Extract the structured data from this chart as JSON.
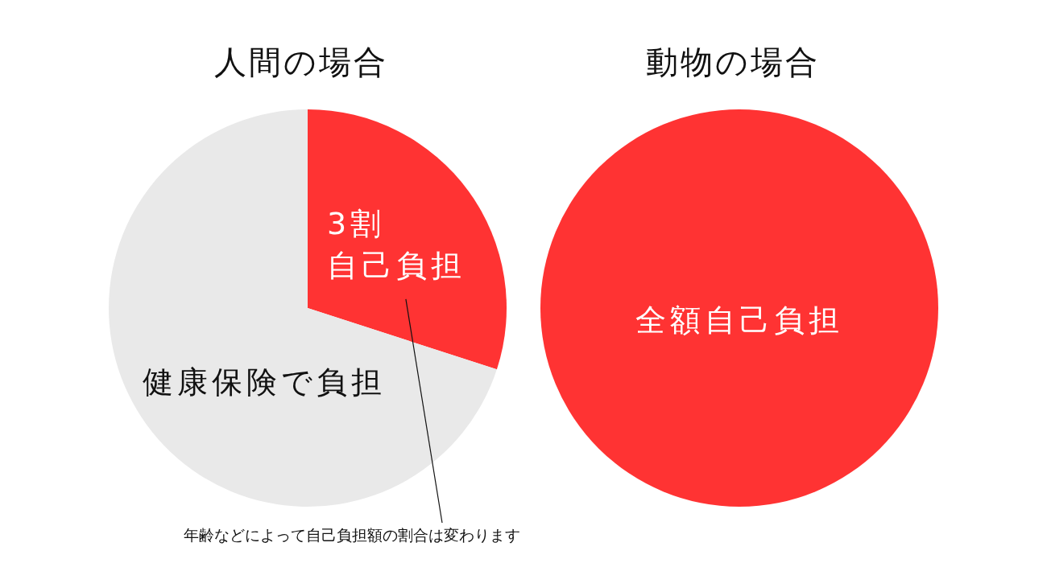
{
  "chart_data": [
    {
      "type": "pie",
      "title": "人間の場合",
      "categories": [
        "3割自己負担",
        "健康保険で負担"
      ],
      "values": [
        30,
        70
      ],
      "colors": [
        "#ff3333",
        "#e9e9e9"
      ],
      "annotations": [
        "年齢などによって自己負担額の割合は変わります"
      ]
    },
    {
      "type": "pie",
      "title": "動物の場合",
      "categories": [
        "全額自己負担"
      ],
      "values": [
        100
      ],
      "colors": [
        "#ff3333"
      ]
    }
  ]
}
